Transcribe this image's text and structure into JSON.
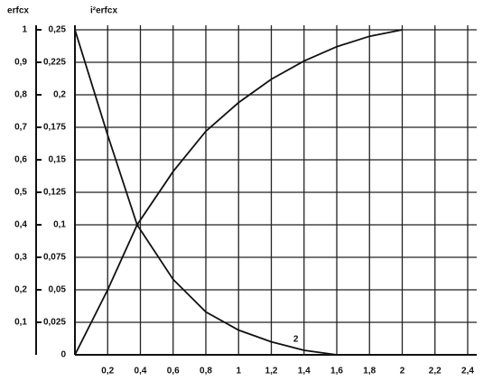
{
  "chart_data": {
    "type": "line",
    "y_label": "i²erfcx",
    "y2_label": "erfcx",
    "x": [
      0,
      0.2,
      0.38,
      0.6,
      0.8,
      1.0,
      1.2,
      1.4,
      1.6,
      1.8,
      2.0
    ],
    "series": [
      {
        "color": "#111111",
        "values": [
          0.25,
          0.169,
          0.1,
          0.058,
          0.033,
          0.019,
          0.01,
          0.0035,
          0,
          null,
          null
        ]
      },
      {
        "color": "#111111",
        "values": [
          0,
          0.05,
          0.1,
          0.141,
          0.172,
          0.194,
          0.212,
          0.226,
          0.237,
          0.245,
          0.25
        ]
      }
    ],
    "annotations": [
      {
        "text": "2",
        "x": 1.35,
        "y": 0.012
      }
    ],
    "xlim": [
      0,
      2.4
    ],
    "xticks": [
      {
        "value": 0.2,
        "label": "0,2"
      },
      {
        "value": 0.4,
        "label": "0,4"
      },
      {
        "value": 0.6,
        "label": "0,6"
      },
      {
        "value": 0.8,
        "label": "0,8"
      },
      1,
      {
        "value": 1.2,
        "label": "1,2"
      },
      {
        "value": 1.4,
        "label": "1,4"
      },
      {
        "value": 1.6,
        "label": "1,6"
      },
      {
        "value": 1.8,
        "label": "1,8"
      },
      2,
      {
        "value": 2.2,
        "label": "2,2"
      },
      {
        "value": 2.4,
        "label": "2,4"
      }
    ],
    "ylim": [
      0,
      0.25
    ],
    "yticks": [
      0,
      {
        "value": 0.025,
        "label": "0,025"
      },
      {
        "value": 0.05,
        "label": "0,05"
      },
      {
        "value": 0.075,
        "label": "0,075"
      },
      {
        "value": 0.1,
        "label": "0,1"
      },
      {
        "value": 0.125,
        "label": "0,125"
      },
      {
        "value": 0.15,
        "label": "0,15"
      },
      {
        "value": 0.175,
        "label": "0,175"
      },
      {
        "value": 0.2,
        "label": "0,2"
      },
      {
        "value": 0.225,
        "label": "0,225"
      },
      {
        "value": 0.25,
        "label": "0,25"
      }
    ],
    "y2lim": [
      0,
      1
    ],
    "y2ticks": [
      {
        "value": 0.1,
        "label": "0,1"
      },
      {
        "value": 0.2,
        "label": "0,2"
      },
      {
        "value": 0.3,
        "label": "0,3"
      },
      {
        "value": 0.4,
        "label": "0,4"
      },
      {
        "value": 0.5,
        "label": "0,5"
      },
      {
        "value": 0.6,
        "label": "0,6"
      },
      {
        "value": 0.7,
        "label": "0,7"
      },
      {
        "value": 0.8,
        "label": "0,8"
      },
      {
        "value": 0.9,
        "label": "0,9"
      },
      1
    ],
    "grid": true
  }
}
